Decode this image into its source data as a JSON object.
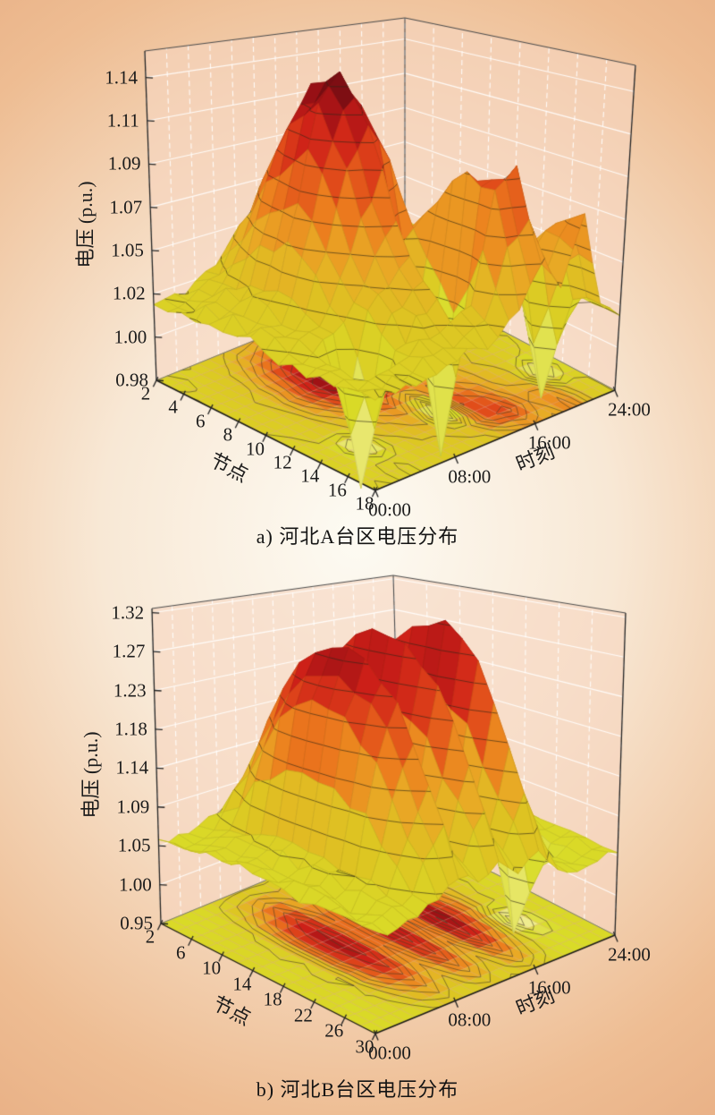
{
  "style": {
    "background": {
      "center": "#fdfbf3",
      "mid1": "#f8e8d5",
      "mid2": "#eebd93",
      "edge": "#df996d"
    },
    "wall_fill": "rgba(247,213,192,0.60)",
    "wall_grid": "rgba(255,255,255,0.88)",
    "floor_grid": "rgba(222,166,146,0.55)",
    "contour_line": "rgba(70,62,36,0.75)",
    "surface_contour": "rgba(45,38,22,0.62)",
    "surface_mesh": "rgba(60,50,20,0.20)",
    "box_edge": "#4c4c4c",
    "axis_edge": "#1a1a1a",
    "text_color": "#1c1c1c",
    "colormap": [
      [
        0.0,
        "#faf6d8"
      ],
      [
        0.14,
        "#efec8e"
      ],
      [
        0.28,
        "#d9dc28"
      ],
      [
        0.42,
        "#ddc522"
      ],
      [
        0.54,
        "#e9a825"
      ],
      [
        0.64,
        "#ec7d1e"
      ],
      [
        0.74,
        "#e0481a"
      ],
      [
        0.83,
        "#cd1f18"
      ],
      [
        0.9,
        "#9d1115"
      ],
      [
        0.96,
        "#5c0b10"
      ],
      [
        1.0,
        "#200709"
      ]
    ]
  },
  "chart_data": [
    {
      "type": "surface",
      "caption": "a) 河北A台区电压分布",
      "xlabel": "时刻",
      "ylabel": "节点",
      "zlabel": "电压 (p.u.)",
      "x_hours": [
        0,
        2,
        4,
        6,
        8,
        10,
        12,
        14,
        16,
        18,
        20,
        22,
        24
      ],
      "x_tick_hours": [
        0,
        8,
        16,
        24
      ],
      "x_tick_labels": [
        "00:00",
        "08:00",
        "16:00",
        "24:00"
      ],
      "y_nodes": [
        2,
        4,
        6,
        8,
        10,
        12,
        14,
        16,
        18
      ],
      "y_tick_nodes": [
        2,
        4,
        6,
        8,
        10,
        12,
        14,
        16,
        18
      ],
      "z_tick_values": [
        0.98,
        1.0,
        1.02,
        1.05,
        1.07,
        1.09,
        1.11,
        1.14
      ],
      "z_tick_labels": [
        "0.98",
        "1.00",
        "1.02",
        "1.05",
        "1.07",
        "1.09",
        "1.11",
        "1.14"
      ],
      "z_box_range": [
        0.98,
        1.154
      ],
      "color_range": [
        0.95,
        1.15
      ],
      "contour_levels": [
        0.995,
        1.008,
        1.021,
        1.034,
        1.047,
        1.06,
        1.073,
        1.086,
        1.099,
        1.112,
        1.125,
        1.138
      ],
      "jitter": 0.004,
      "values": [
        [
          1.02,
          1.022,
          1.025,
          1.03,
          1.04,
          1.05,
          1.045,
          1.035,
          1.028,
          1.025,
          1.022,
          1.02,
          1.02
        ],
        [
          1.022,
          1.024,
          1.03,
          1.05,
          1.08,
          1.1,
          1.085,
          1.05,
          1.035,
          1.03,
          1.025,
          1.022,
          1.02
        ],
        [
          1.022,
          1.025,
          1.035,
          1.07,
          1.115,
          1.135,
          1.12,
          1.065,
          1.04,
          1.032,
          1.028,
          1.022,
          1.02
        ],
        [
          1.022,
          1.025,
          1.038,
          1.08,
          1.13,
          1.145,
          1.125,
          1.07,
          1.045,
          1.035,
          1.028,
          1.024,
          1.02
        ],
        [
          1.02,
          1.024,
          1.032,
          1.06,
          1.1,
          1.12,
          1.1,
          1.06,
          1.05,
          1.04,
          1.03,
          1.024,
          1.02
        ],
        [
          1.02,
          1.022,
          1.028,
          1.04,
          1.06,
          1.075,
          1.02,
          1.08,
          1.06,
          1.045,
          1.032,
          1.022,
          1.02
        ],
        [
          1.02,
          1.02,
          0.96,
          1.03,
          1.04,
          1.05,
          0.958,
          1.1,
          1.085,
          1.05,
          1.035,
          0.965,
          1.02
        ],
        [
          1.02,
          1.02,
          1.022,
          1.025,
          1.03,
          1.035,
          1.04,
          1.095,
          1.105,
          1.06,
          1.07,
          1.026,
          1.02
        ],
        [
          1.02,
          1.02,
          1.02,
          1.022,
          1.025,
          1.028,
          1.03,
          1.04,
          1.06,
          1.045,
          1.08,
          1.03,
          1.02
        ]
      ]
    },
    {
      "type": "surface",
      "caption": "b) 河北B台区电压分布",
      "xlabel": "时刻",
      "ylabel": "节点",
      "zlabel": "电压 (p.u.)",
      "x_hours": [
        0,
        2,
        4,
        6,
        8,
        10,
        12,
        14,
        16,
        18,
        20,
        22,
        24
      ],
      "x_tick_hours": [
        0,
        8,
        16,
        24
      ],
      "x_tick_labels": [
        "00:00",
        "08:00",
        "16:00",
        "24:00"
      ],
      "y_nodes": [
        2,
        6,
        10,
        14,
        18,
        22,
        26,
        30
      ],
      "y_tick_nodes": [
        2,
        6,
        10,
        14,
        18,
        22,
        26,
        30
      ],
      "z_tick_values": [
        0.95,
        1.0,
        1.05,
        1.09,
        1.14,
        1.18,
        1.23,
        1.27,
        1.32
      ],
      "z_tick_labels": [
        "0.95",
        "1.00",
        "1.05",
        "1.09",
        "1.14",
        "1.18",
        "1.23",
        "1.27",
        "1.32"
      ],
      "z_box_range": [
        0.95,
        1.325
      ],
      "color_range": [
        0.93,
        1.32
      ],
      "contour_levels": [
        0.975,
        1.005,
        1.035,
        1.065,
        1.095,
        1.125,
        1.155,
        1.185,
        1.215,
        1.245,
        1.275,
        1.305
      ],
      "jitter": 0.007,
      "values": [
        [
          1.05,
          1.048,
          1.05,
          1.055,
          1.06,
          1.058,
          1.06,
          1.056,
          1.058,
          1.054,
          1.05,
          1.048,
          1.05
        ],
        [
          1.052,
          1.05,
          1.06,
          1.12,
          1.18,
          1.12,
          1.19,
          1.11,
          1.18,
          1.12,
          1.07,
          1.052,
          1.05
        ],
        [
          1.055,
          1.052,
          1.07,
          1.2,
          1.26,
          1.15,
          1.265,
          1.14,
          1.26,
          1.16,
          1.08,
          1.055,
          1.05
        ],
        [
          1.055,
          1.052,
          1.075,
          1.23,
          1.285,
          1.16,
          1.3,
          1.15,
          1.295,
          1.18,
          1.09,
          1.056,
          1.05
        ],
        [
          1.052,
          1.05,
          1.072,
          1.22,
          1.28,
          1.155,
          1.29,
          1.145,
          1.31,
          1.2,
          1.085,
          1.054,
          1.05
        ],
        [
          1.05,
          1.048,
          1.065,
          1.18,
          1.24,
          1.13,
          1.25,
          1.12,
          1.27,
          1.15,
          0.935,
          1.05,
          1.048
        ],
        [
          1.05,
          1.046,
          1.058,
          1.11,
          1.16,
          1.09,
          1.17,
          1.085,
          1.18,
          1.09,
          1.04,
          1.046,
          1.048
        ],
        [
          1.048,
          1.045,
          1.05,
          1.06,
          1.075,
          1.065,
          1.08,
          1.06,
          1.078,
          1.05,
          1.04,
          1.044,
          1.046
        ]
      ]
    }
  ]
}
